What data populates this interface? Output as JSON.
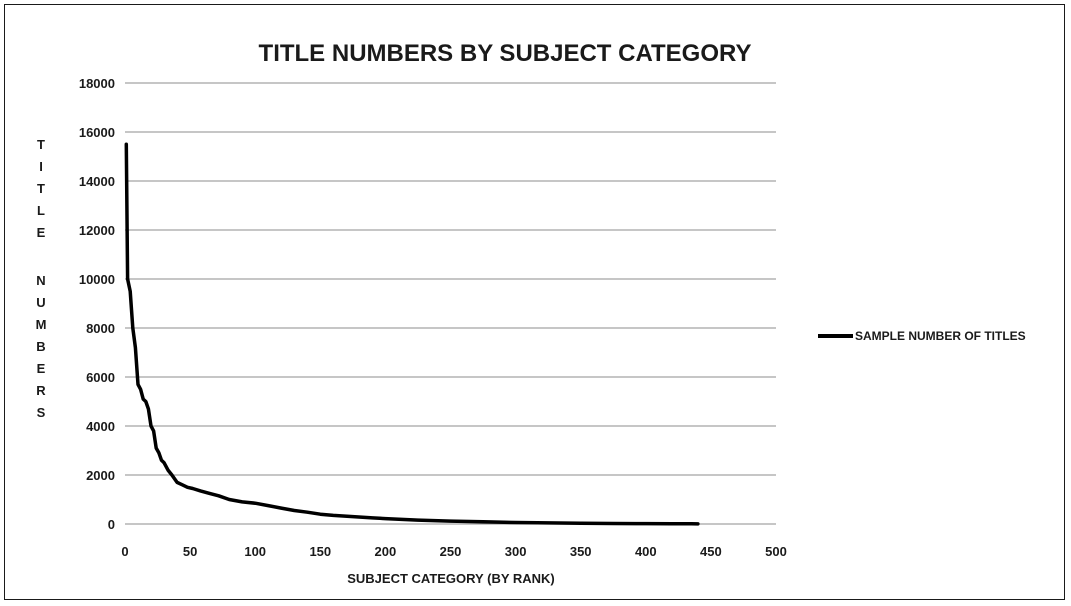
{
  "chart_data": {
    "type": "line",
    "title": "TITLE NUMBERS BY SUBJECT CATEGORY",
    "xlabel": "SUBJECT CATEGORY (BY RANK)",
    "ylabel": "TITLE NUMBERS",
    "xlim": [
      0,
      500
    ],
    "ylim": [
      0,
      18000
    ],
    "xticks": [
      0,
      50,
      100,
      150,
      200,
      250,
      300,
      350,
      400,
      450,
      500
    ],
    "yticks": [
      0,
      2000,
      4000,
      6000,
      8000,
      10000,
      12000,
      14000,
      16000,
      18000
    ],
    "grid": "horizontal",
    "legend_position": "right",
    "series": [
      {
        "name": "SAMPLE NUMBER OF TITLES",
        "color": "#000000",
        "x": [
          1,
          2,
          4,
          6,
          8,
          10,
          12,
          14,
          16,
          18,
          20,
          22,
          24,
          26,
          28,
          30,
          33,
          36,
          40,
          44,
          48,
          52,
          58,
          65,
          72,
          80,
          90,
          100,
          110,
          120,
          130,
          140,
          150,
          160,
          175,
          190,
          200,
          225,
          250,
          275,
          300,
          325,
          350,
          375,
          400,
          420,
          435,
          440
        ],
        "y": [
          15500,
          10000,
          9500,
          8000,
          7200,
          5700,
          5500,
          5100,
          5000,
          4700,
          4000,
          3800,
          3100,
          2900,
          2600,
          2500,
          2200,
          2000,
          1700,
          1600,
          1500,
          1450,
          1350,
          1250,
          1150,
          1000,
          900,
          850,
          750,
          650,
          550,
          480,
          400,
          350,
          300,
          250,
          220,
          160,
          120,
          90,
          60,
          45,
          30,
          20,
          15,
          10,
          8,
          5
        ]
      }
    ]
  }
}
